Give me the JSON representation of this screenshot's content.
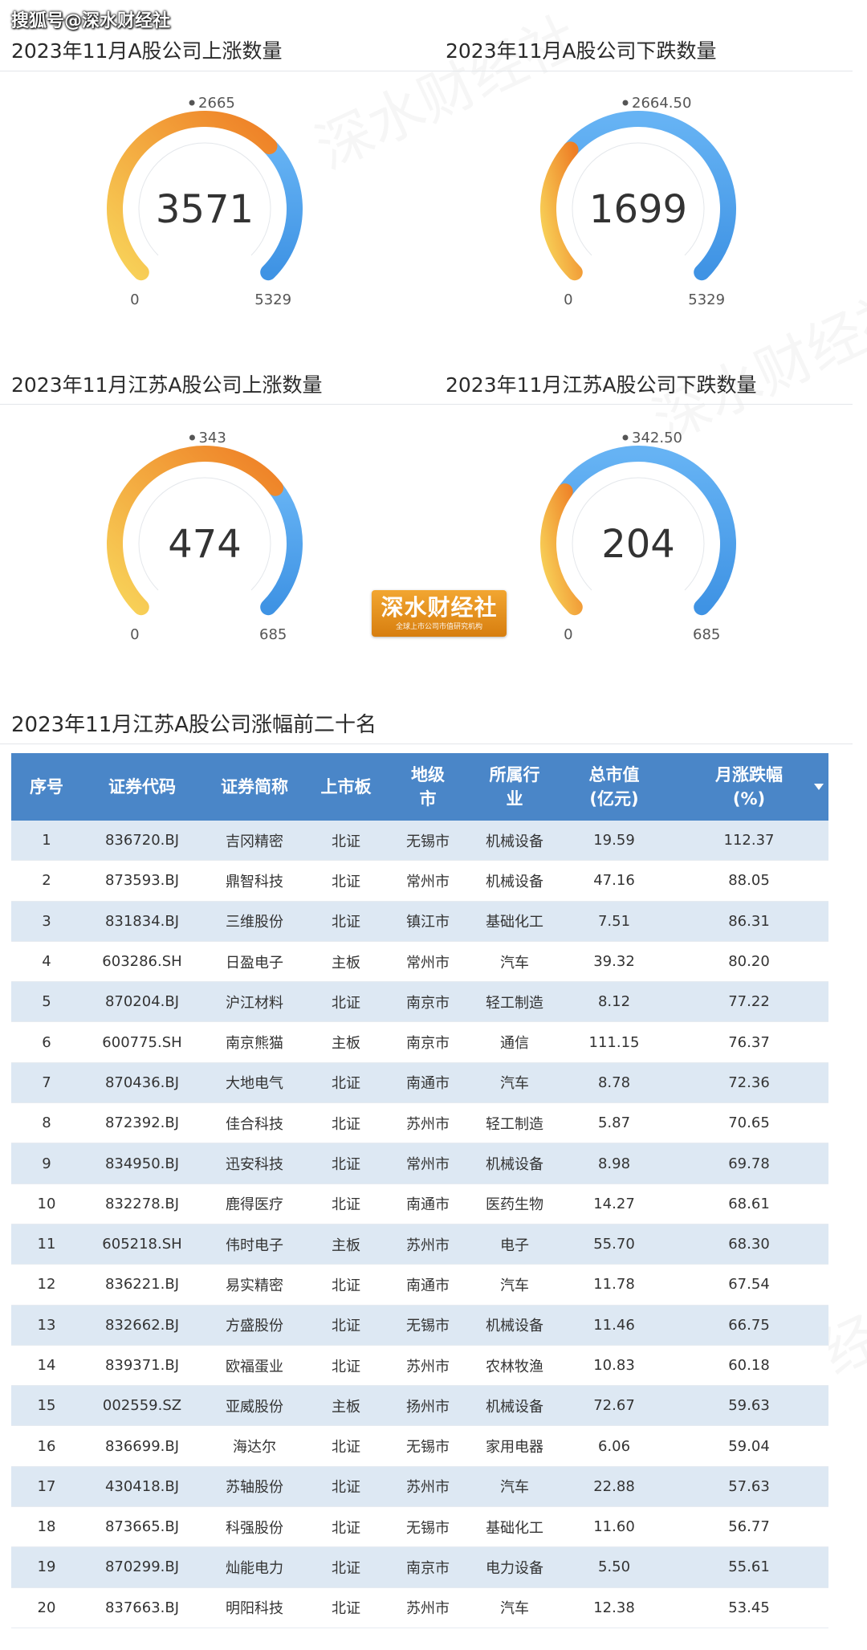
{
  "source_label": "搜狐号@深水财经社",
  "watermark": "深水财经社",
  "logo": {
    "main": "深水财经社",
    "sub": "全球上市公司市值研究机构"
  },
  "colors": {
    "orange_start": "#f8d45a",
    "orange_end": "#ee7e25",
    "blue_start": "#66b3f4",
    "blue_end": "#3f93e4",
    "header_blue": "#4a86c8"
  },
  "gauges": [
    {
      "title": "2023年11月A股公司上涨数量",
      "value": 3571,
      "value_label": "3571",
      "min_label": "0",
      "max_label": "5329",
      "mark_label": "2665",
      "min": 0,
      "max": 5329,
      "mark": 2665,
      "style": "orange-value"
    },
    {
      "title": "2023年11月A股公司下跌数量",
      "value": 1699,
      "value_label": "1699",
      "min_label": "0",
      "max_label": "5329",
      "mark_label": "2664.50",
      "min": 0,
      "max": 5329,
      "mark": 2664.5,
      "style": "orange-value"
    },
    {
      "title": "2023年11月江苏A股公司上涨数量",
      "value": 474,
      "value_label": "474",
      "min_label": "0",
      "max_label": "685",
      "mark_label": "343",
      "min": 0,
      "max": 685,
      "mark": 343,
      "style": "orange-value"
    },
    {
      "title": "2023年11月江苏A股公司下跌数量",
      "value": 204,
      "value_label": "204",
      "min_label": "0",
      "max_label": "685",
      "mark_label": "342.50",
      "min": 0,
      "max": 685,
      "mark": 342.5,
      "style": "orange-value"
    }
  ],
  "chart_data": [
    {
      "type": "gauge",
      "title": "2023年11月A股公司上涨数量",
      "value": 3571,
      "range": [
        0,
        5329
      ],
      "marker": 2665
    },
    {
      "type": "gauge",
      "title": "2023年11月A股公司下跌数量",
      "value": 1699,
      "range": [
        0,
        5329
      ],
      "marker": 2664.5
    },
    {
      "type": "gauge",
      "title": "2023年11月江苏A股公司上涨数量",
      "value": 474,
      "range": [
        0,
        685
      ],
      "marker": 343
    },
    {
      "type": "gauge",
      "title": "2023年11月江苏A股公司下跌数量",
      "value": 204,
      "range": [
        0,
        685
      ],
      "marker": 342.5
    }
  ],
  "ranking": {
    "title": "2023年11月江苏A股公司涨幅前二十名",
    "headers": [
      {
        "line1": "序号",
        "line2": ""
      },
      {
        "line1": "证券代码",
        "line2": ""
      },
      {
        "line1": "证券简称",
        "line2": ""
      },
      {
        "line1": "上市板",
        "line2": ""
      },
      {
        "line1": "地级",
        "line2": "市"
      },
      {
        "line1": "所属行",
        "line2": "业"
      },
      {
        "line1": "总市值",
        "line2": "(亿元)"
      },
      {
        "line1": "月涨跌幅",
        "line2": "(%)"
      }
    ],
    "rows": [
      [
        "1",
        "836720.BJ",
        "吉冈精密",
        "北证",
        "无锡市",
        "机械设备",
        "19.59",
        "112.37"
      ],
      [
        "2",
        "873593.BJ",
        "鼎智科技",
        "北证",
        "常州市",
        "机械设备",
        "47.16",
        "88.05"
      ],
      [
        "3",
        "831834.BJ",
        "三维股份",
        "北证",
        "镇江市",
        "基础化工",
        "7.51",
        "86.31"
      ],
      [
        "4",
        "603286.SH",
        "日盈电子",
        "主板",
        "常州市",
        "汽车",
        "39.32",
        "80.20"
      ],
      [
        "5",
        "870204.BJ",
        "沪江材料",
        "北证",
        "南京市",
        "轻工制造",
        "8.12",
        "77.22"
      ],
      [
        "6",
        "600775.SH",
        "南京熊猫",
        "主板",
        "南京市",
        "通信",
        "111.15",
        "76.37"
      ],
      [
        "7",
        "870436.BJ",
        "大地电气",
        "北证",
        "南通市",
        "汽车",
        "8.78",
        "72.36"
      ],
      [
        "8",
        "872392.BJ",
        "佳合科技",
        "北证",
        "苏州市",
        "轻工制造",
        "5.87",
        "70.65"
      ],
      [
        "9",
        "834950.BJ",
        "迅安科技",
        "北证",
        "常州市",
        "机械设备",
        "8.98",
        "69.78"
      ],
      [
        "10",
        "832278.BJ",
        "鹿得医疗",
        "北证",
        "南通市",
        "医药生物",
        "14.27",
        "68.61"
      ],
      [
        "11",
        "605218.SH",
        "伟时电子",
        "主板",
        "苏州市",
        "电子",
        "55.70",
        "68.30"
      ],
      [
        "12",
        "836221.BJ",
        "易实精密",
        "北证",
        "南通市",
        "汽车",
        "11.78",
        "67.54"
      ],
      [
        "13",
        "832662.BJ",
        "方盛股份",
        "北证",
        "无锡市",
        "机械设备",
        "11.46",
        "66.75"
      ],
      [
        "14",
        "839371.BJ",
        "欧福蛋业",
        "北证",
        "苏州市",
        "农林牧渔",
        "10.83",
        "60.18"
      ],
      [
        "15",
        "002559.SZ",
        "亚威股份",
        "主板",
        "扬州市",
        "机械设备",
        "72.67",
        "59.63"
      ],
      [
        "16",
        "836699.BJ",
        "海达尔",
        "北证",
        "无锡市",
        "家用电器",
        "6.06",
        "59.04"
      ],
      [
        "17",
        "430418.BJ",
        "苏轴股份",
        "北证",
        "苏州市",
        "汽车",
        "22.88",
        "57.63"
      ],
      [
        "18",
        "873665.BJ",
        "科强股份",
        "北证",
        "无锡市",
        "基础化工",
        "11.60",
        "56.77"
      ],
      [
        "19",
        "870299.BJ",
        "灿能电力",
        "北证",
        "南京市",
        "电力设备",
        "5.50",
        "55.61"
      ],
      [
        "20",
        "837663.BJ",
        "明阳科技",
        "北证",
        "苏州市",
        "汽车",
        "12.38",
        "53.45"
      ]
    ]
  }
}
